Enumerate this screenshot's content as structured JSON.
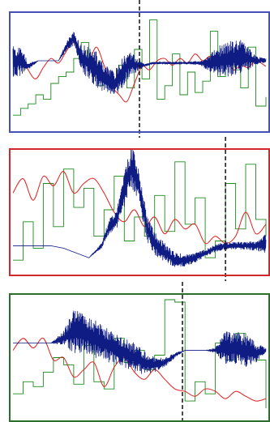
{
  "figure": {
    "title": "",
    "panel_frame_colors": [
      "#4452b8",
      "#d3282b",
      "#2c6e2c"
    ]
  },
  "chart_data": [
    {
      "type": "line",
      "title": "",
      "xlabel": "",
      "ylabel": "",
      "x_range": [
        0,
        100
      ],
      "y_range": [
        0,
        100
      ],
      "grid": false,
      "legend": "none",
      "frame_color": "#4452b8",
      "marker_x": 50,
      "series": [
        {
          "color": "#0f1c84",
          "style": "noisy",
          "x": [
            0,
            3,
            6,
            10,
            14,
            18,
            21,
            24,
            27,
            30,
            33,
            37,
            40,
            43,
            46,
            49,
            52,
            55,
            58,
            62,
            66,
            70,
            74,
            78,
            82,
            86,
            90,
            93,
            96,
            100
          ],
          "y": [
            60,
            60,
            55,
            60,
            60,
            60,
            72,
            80,
            62,
            58,
            52,
            44,
            40,
            48,
            58,
            56,
            56,
            58,
            58,
            58,
            58,
            58,
            58,
            58,
            60,
            62,
            64,
            62,
            60,
            60
          ],
          "amplitude": [
            15,
            14,
            3,
            0,
            0,
            0,
            4,
            6,
            12,
            14,
            16,
            12,
            10,
            14,
            12,
            6,
            1,
            1,
            1,
            1,
            1,
            1,
            2,
            8,
            14,
            16,
            15,
            10,
            4,
            2
          ]
        },
        {
          "color": "#e02020",
          "style": "smooth",
          "x": [
            0,
            3,
            6,
            9,
            12,
            15,
            18,
            21,
            24,
            27,
            30,
            33,
            36,
            39,
            42,
            45,
            48,
            51,
            54,
            57,
            60,
            63,
            66,
            69,
            72,
            75,
            78,
            81,
            84,
            87,
            90,
            93,
            96,
            100
          ],
          "y": [
            58,
            66,
            52,
            44,
            54,
            62,
            58,
            68,
            76,
            66,
            60,
            72,
            56,
            38,
            30,
            24,
            40,
            55,
            52,
            60,
            62,
            56,
            62,
            58,
            66,
            60,
            64,
            58,
            66,
            52,
            56,
            54,
            60,
            55
          ]
        },
        {
          "color": "#1f8a1f",
          "style": "step",
          "x": [
            0,
            3,
            6,
            9,
            12,
            15,
            18,
            21,
            24,
            27,
            30,
            33,
            36,
            39,
            42,
            45,
            48,
            51,
            54,
            57,
            60,
            63,
            66,
            69,
            72,
            75,
            78,
            81,
            84,
            87,
            90,
            93,
            96,
            100
          ],
          "y": [
            12,
            18,
            22,
            30,
            26,
            40,
            46,
            50,
            62,
            76,
            52,
            38,
            48,
            42,
            56,
            36,
            70,
            44,
            96,
            26,
            38,
            66,
            30,
            50,
            32,
            42,
            86,
            46,
            62,
            52,
            36,
            72,
            20,
            28
          ]
        }
      ]
    },
    {
      "type": "line",
      "title": "",
      "xlabel": "",
      "ylabel": "",
      "x_range": [
        0,
        100
      ],
      "y_range": [
        0,
        100
      ],
      "grid": false,
      "legend": "none",
      "frame_color": "#d3282b",
      "marker_x": 84,
      "series": [
        {
          "color": "#0f1c84",
          "style": "noisy",
          "x": [
            0,
            5,
            10,
            15,
            20,
            25,
            30,
            35,
            38,
            41,
            44,
            47,
            50,
            53,
            56,
            60,
            64,
            68,
            72,
            76,
            80,
            84,
            88,
            92,
            96,
            100
          ],
          "y": [
            22,
            22,
            22,
            22,
            20,
            16,
            12,
            22,
            38,
            44,
            70,
            88,
            70,
            36,
            24,
            16,
            10,
            10,
            12,
            16,
            20,
            22,
            22,
            22,
            22,
            24
          ],
          "amplitude": [
            0,
            0,
            0,
            0,
            0,
            0,
            0,
            2,
            6,
            8,
            16,
            18,
            14,
            10,
            10,
            8,
            6,
            5,
            4,
            3,
            3,
            3,
            3,
            3,
            4,
            8
          ]
        },
        {
          "color": "#e02020",
          "style": "smooth",
          "x": [
            0,
            4,
            8,
            12,
            16,
            20,
            24,
            28,
            32,
            36,
            40,
            44,
            48,
            52,
            56,
            60,
            64,
            68,
            72,
            76,
            80,
            84,
            88,
            92,
            96,
            100
          ],
          "y": [
            66,
            78,
            60,
            80,
            72,
            84,
            66,
            74,
            78,
            66,
            50,
            42,
            52,
            38,
            46,
            32,
            44,
            36,
            40,
            24,
            30,
            24,
            30,
            50,
            32,
            40
          ]
        },
        {
          "color": "#1f8a1f",
          "style": "step",
          "x": [
            0,
            4,
            8,
            12,
            16,
            20,
            24,
            28,
            32,
            36,
            40,
            44,
            48,
            52,
            56,
            60,
            64,
            68,
            72,
            76,
            80,
            84,
            88,
            92,
            96,
            100
          ],
          "y": [
            10,
            42,
            20,
            74,
            38,
            86,
            54,
            70,
            30,
            52,
            80,
            26,
            46,
            30,
            64,
            34,
            92,
            40,
            62,
            12,
            26,
            74,
            36,
            90,
            44,
            30
          ]
        }
      ]
    },
    {
      "type": "line",
      "title": "",
      "xlabel": "",
      "ylabel": "",
      "x_range": [
        0,
        100
      ],
      "y_range": [
        0,
        100
      ],
      "grid": false,
      "legend": "none",
      "frame_color": "#2c6e2c",
      "marker_x": 67,
      "series": [
        {
          "color": "#0f1c84",
          "style": "noisy",
          "x": [
            0,
            5,
            10,
            15,
            20,
            24,
            28,
            32,
            36,
            40,
            44,
            48,
            52,
            56,
            60,
            64,
            68,
            72,
            76,
            80,
            84,
            88,
            92,
            96,
            100
          ],
          "y": [
            62,
            62,
            62,
            62,
            66,
            72,
            70,
            66,
            62,
            58,
            54,
            50,
            46,
            44,
            46,
            52,
            56,
            56,
            56,
            56,
            58,
            58,
            56,
            54,
            56
          ],
          "amplitude": [
            0,
            0,
            0,
            0,
            6,
            18,
            16,
            16,
            14,
            14,
            12,
            12,
            10,
            6,
            4,
            2,
            0,
            0,
            0,
            2,
            14,
            14,
            14,
            8,
            2
          ]
        },
        {
          "color": "#e02020",
          "style": "smooth",
          "x": [
            0,
            4,
            8,
            12,
            16,
            20,
            24,
            28,
            32,
            36,
            40,
            44,
            48,
            52,
            56,
            60,
            64,
            68,
            72,
            76,
            80,
            84,
            88,
            92,
            96,
            100
          ],
          "y": [
            56,
            66,
            58,
            66,
            48,
            50,
            34,
            40,
            46,
            26,
            42,
            50,
            38,
            32,
            40,
            32,
            24,
            22,
            18,
            24,
            22,
            16,
            22,
            18,
            14,
            16
          ]
        },
        {
          "color": "#1f8a1f",
          "style": "step",
          "x": [
            0,
            4,
            8,
            12,
            16,
            20,
            24,
            28,
            32,
            36,
            40,
            44,
            48,
            52,
            56,
            60,
            64,
            68,
            72,
            76,
            80,
            84,
            88,
            92,
            96,
            100
          ],
          "y": [
            20,
            30,
            26,
            38,
            50,
            44,
            28,
            60,
            30,
            24,
            66,
            46,
            56,
            40,
            52,
            98,
            96,
            14,
            30,
            20,
            62,
            48,
            70,
            56,
            48,
            8
          ]
        }
      ]
    }
  ]
}
